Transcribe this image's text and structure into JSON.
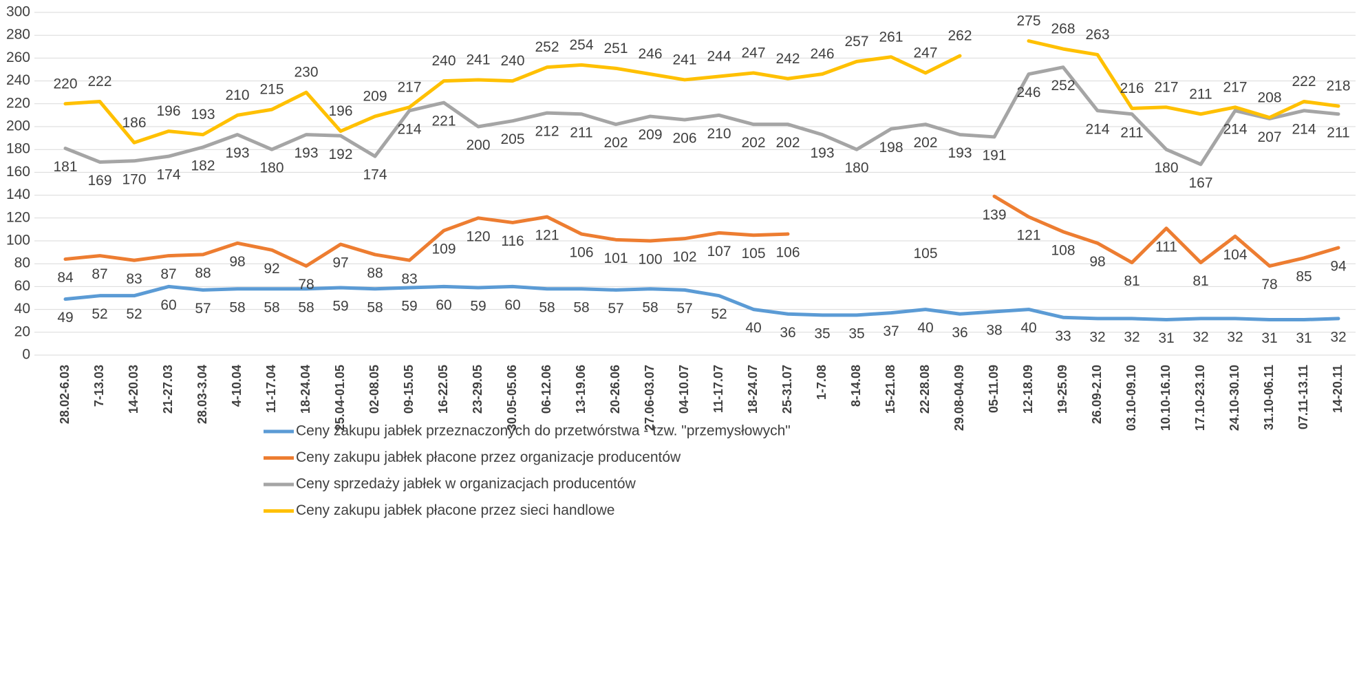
{
  "chart_data": {
    "type": "line",
    "categories": [
      "28.02-6.03",
      "7-13.03",
      "14-20.03",
      "21-27.03",
      "28.03-3.04",
      "4-10.04",
      "11-17.04",
      "18-24.04",
      "25.04-01.05",
      "02-08.05",
      "09-15.05",
      "16-22.05",
      "23-29.05",
      "30.05-05.06",
      "06-12.06",
      "13-19.06",
      "20-26.06",
      "27.06-03.07",
      "04-10.07",
      "11-17.07",
      "18-24.07",
      "25-31.07",
      "1-7.08",
      "8-14.08",
      "15-21.08",
      "22-28.08",
      "29.08-04.09",
      "05-11.09",
      "12-18.09",
      "19-25.09",
      "26.09-2.10",
      "03.10-09.10",
      "10.10-16.10",
      "17.10-23.10",
      "24.10-30.10",
      "31.10-06.11",
      "07.11-13.11",
      "14-20.11"
    ],
    "series": [
      {
        "name": "Ceny zakupu jabłek przeznaczonych do przetwórstwa - tzw. \"przemysłowych\"",
        "color": "#5b9bd5",
        "label_pos": "below",
        "values": [
          49,
          52,
          52,
          60,
          57,
          58,
          58,
          58,
          59,
          58,
          59,
          60,
          59,
          60,
          58,
          58,
          57,
          58,
          57,
          52,
          40,
          36,
          35,
          35,
          37,
          40,
          36,
          38,
          40,
          33,
          32,
          32,
          31,
          32,
          32,
          31,
          31,
          32
        ]
      },
      {
        "name": "Ceny zakupu jabłek płacone przez organizacje  producentów",
        "color": "#ed7d31",
        "label_pos": "below",
        "values": [
          84,
          87,
          83,
          87,
          88,
          98,
          92,
          78,
          97,
          88,
          83,
          109,
          120,
          116,
          121,
          106,
          101,
          100,
          102,
          107,
          105,
          106,
          null,
          null,
          null,
          105,
          null,
          139,
          121,
          108,
          98,
          81,
          111,
          81,
          104,
          78,
          85,
          94
        ]
      },
      {
        "name": "Ceny sprzedaży jabłek w organizacjach  producentów",
        "color": "#a5a5a5",
        "label_pos": "below",
        "values": [
          181,
          169,
          170,
          174,
          182,
          193,
          180,
          193,
          192,
          174,
          214,
          221,
          200,
          205,
          212,
          211,
          202,
          209,
          206,
          210,
          202,
          202,
          193,
          180,
          198,
          202,
          193,
          191,
          246,
          252,
          214,
          211,
          180,
          167,
          214,
          207,
          214,
          211
        ]
      },
      {
        "name": "Ceny zakupu jabłek płacone przez sieci handlowe",
        "color": "#ffc000",
        "label_pos": "above",
        "values": [
          220,
          222,
          186,
          196,
          193,
          210,
          215,
          230,
          196,
          209,
          217,
          240,
          241,
          240,
          252,
          254,
          251,
          246,
          241,
          244,
          247,
          242,
          246,
          257,
          261,
          247,
          262,
          null,
          275,
          268,
          263,
          216,
          217,
          211,
          217,
          208,
          222,
          218
        ]
      }
    ],
    "ylim": [
      0,
      300
    ],
    "yticks": [
      0,
      20,
      40,
      60,
      80,
      100,
      120,
      140,
      160,
      180,
      200,
      220,
      240,
      260,
      280,
      300
    ],
    "grid": true,
    "legend": "bottom"
  }
}
